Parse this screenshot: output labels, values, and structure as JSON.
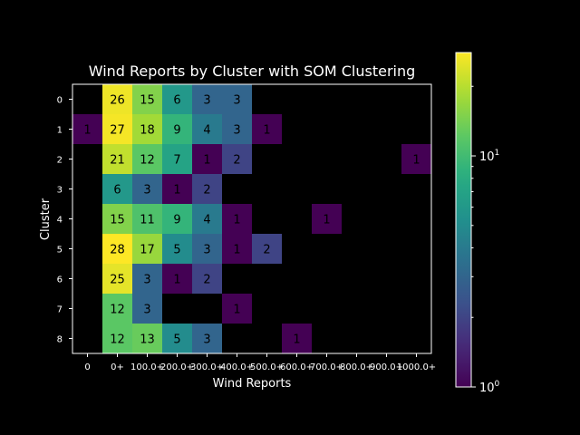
{
  "chart_data": {
    "type": "heatmap",
    "title": "Wind Reports by Cluster with SOM Clustering",
    "xlabel": "Wind Reports",
    "ylabel": "Cluster",
    "x_tick_labels": [
      "0",
      "0+",
      "100.0+",
      "200.0+",
      "300.0+",
      "400.0+",
      "500.0+",
      "600.0+",
      "700.0+",
      "800.0+",
      "900.0+",
      "1000.0+"
    ],
    "y_tick_labels": [
      "0",
      "1",
      "2",
      "3",
      "4",
      "5",
      "6",
      "7",
      "8"
    ],
    "values": [
      [
        null,
        26,
        15,
        6,
        3,
        3,
        null,
        null,
        null,
        null,
        null,
        null
      ],
      [
        1,
        27,
        18,
        9,
        4,
        3,
        1,
        null,
        null,
        null,
        null,
        null
      ],
      [
        null,
        21,
        12,
        7,
        1,
        2,
        null,
        null,
        null,
        null,
        null,
        1
      ],
      [
        null,
        6,
        3,
        1,
        2,
        null,
        null,
        null,
        null,
        null,
        null,
        null
      ],
      [
        null,
        15,
        11,
        9,
        4,
        1,
        null,
        null,
        1,
        null,
        null,
        null
      ],
      [
        null,
        28,
        17,
        5,
        3,
        1,
        2,
        null,
        null,
        null,
        null,
        null
      ],
      [
        null,
        25,
        3,
        1,
        2,
        null,
        null,
        null,
        null,
        null,
        null,
        null
      ],
      [
        null,
        12,
        3,
        null,
        null,
        1,
        null,
        null,
        null,
        null,
        null,
        null
      ],
      [
        null,
        12,
        13,
        5,
        3,
        null,
        null,
        1,
        null,
        null,
        null,
        null
      ]
    ],
    "colorbar": {
      "scale": "log",
      "colormap": "viridis",
      "range": [
        1,
        28
      ],
      "major_ticks": [
        {
          "value": 1,
          "base": "10",
          "exp": "0"
        },
        {
          "value": 10,
          "base": "10",
          "exp": "1"
        }
      ]
    },
    "background": "#000000"
  }
}
